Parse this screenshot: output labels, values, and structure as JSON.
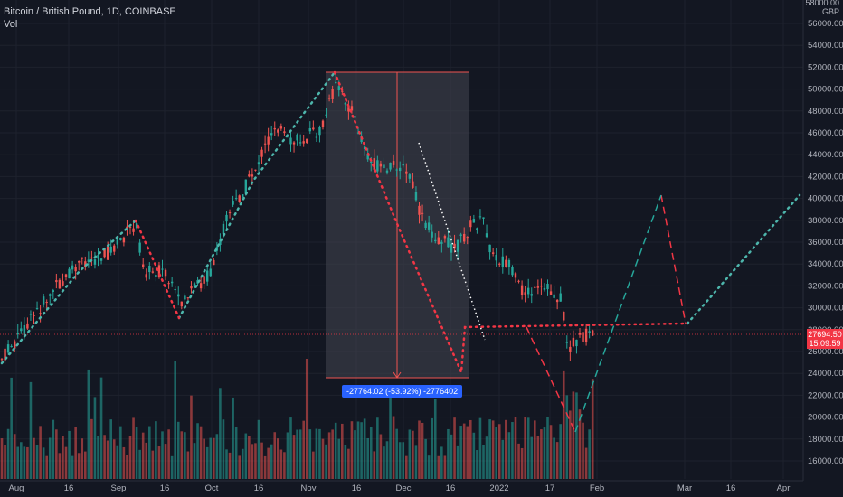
{
  "legend": {
    "symbol_line": "Bitcoin / British Pound, 1D, COINBASE",
    "volume_label": "Vol"
  },
  "price_axis": {
    "currency_top": "58000.00",
    "currency": "GBP",
    "ticks": [
      "56000.00",
      "54000.00",
      "52000.00",
      "50000.00",
      "48000.00",
      "46000.00",
      "44000.00",
      "42000.00",
      "40000.00",
      "38000.00",
      "36000.00",
      "34000.00",
      "32000.00",
      "30000.00",
      "28000.00",
      "26000.00",
      "24000.00",
      "22000.00",
      "20000.00",
      "18000.00",
      "16000.00"
    ]
  },
  "time_axis": {
    "ticks": [
      "Aug",
      "16",
      "Sep",
      "16",
      "Oct",
      "16",
      "Nov",
      "16",
      "Dec",
      "16",
      "2022",
      "17",
      "Feb",
      "Mar",
      "16",
      "Apr"
    ]
  },
  "last_price": {
    "value": "27694.50",
    "countdown": "15:09:59"
  },
  "measure": {
    "label": "-27764.02 (-53.92%) -2776402"
  },
  "colors": {
    "background": "#131722",
    "up": "#26a69a",
    "down": "#ef5350",
    "measure_box": "#434651",
    "measure_label": "#2962ff",
    "teal_dots": "#4db6ac"
  }
}
